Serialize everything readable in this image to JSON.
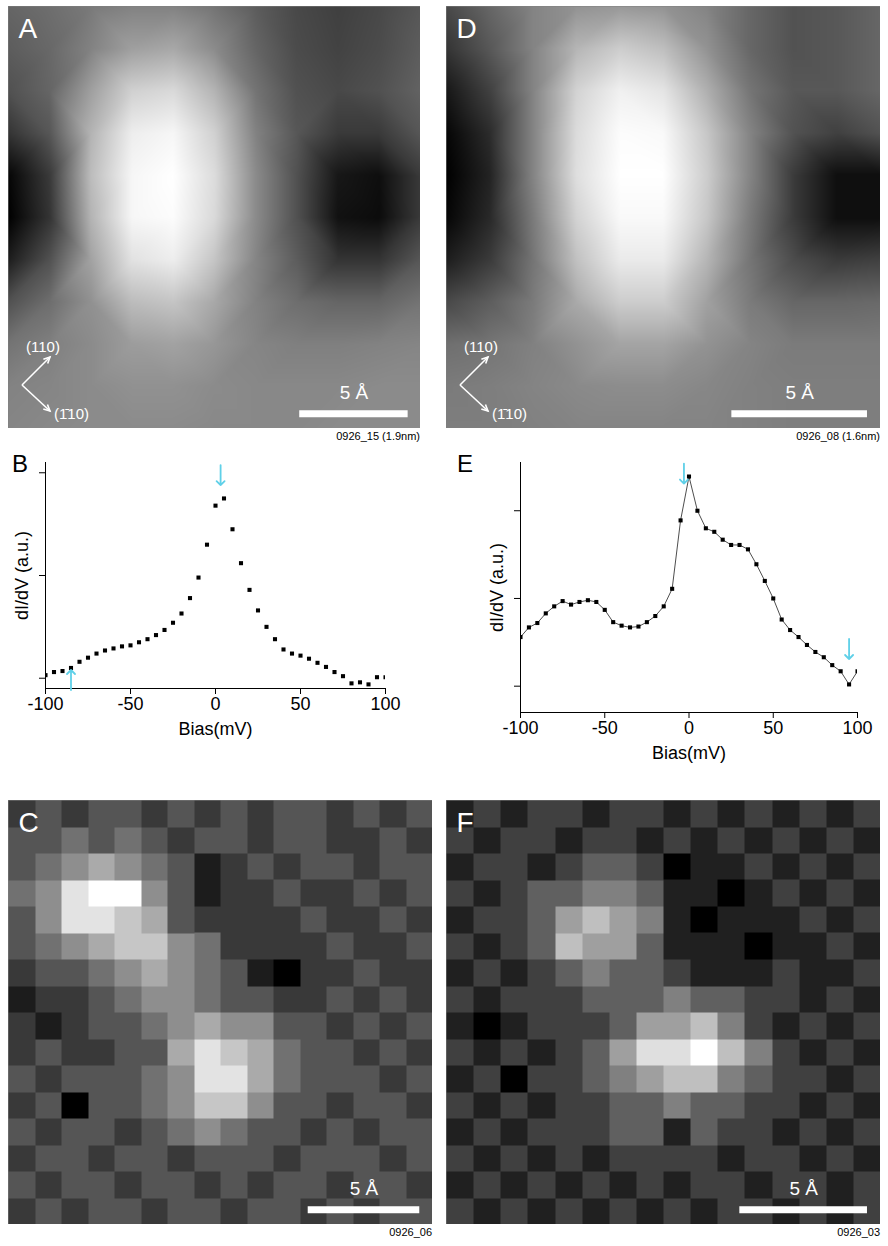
{
  "chart_data": [
    {
      "title": "A",
      "type": "image",
      "caption": "0926_15 (1.9nm)",
      "xlim": [
        0,
        19
      ],
      "ylim": [
        0,
        19
      ],
      "tick_labels": false,
      "scale_bar": {
        "length": 5,
        "label": "5 Å"
      },
      "annotations": [
        "(110)",
        "(1̄10)"
      ],
      "cells": [
        [
          0.45,
          0.48,
          0.52,
          0.55,
          0.55,
          0.5,
          0.42,
          0.35,
          0.32,
          0.35,
          0.4
        ],
        [
          0.42,
          0.46,
          0.55,
          0.65,
          0.68,
          0.58,
          0.45,
          0.36,
          0.33,
          0.36,
          0.42
        ],
        [
          0.38,
          0.45,
          0.65,
          0.82,
          0.85,
          0.72,
          0.5,
          0.38,
          0.35,
          0.38,
          0.44
        ],
        [
          0.28,
          0.4,
          0.72,
          0.92,
          0.95,
          0.82,
          0.55,
          0.4,
          0.3,
          0.3,
          0.4
        ],
        [
          0.12,
          0.3,
          0.75,
          0.95,
          0.98,
          0.86,
          0.58,
          0.38,
          0.18,
          0.15,
          0.3
        ],
        [
          0.1,
          0.28,
          0.72,
          0.95,
          0.97,
          0.85,
          0.58,
          0.38,
          0.16,
          0.14,
          0.3
        ],
        [
          0.2,
          0.38,
          0.66,
          0.88,
          0.92,
          0.78,
          0.56,
          0.42,
          0.28,
          0.28,
          0.4
        ],
        [
          0.38,
          0.48,
          0.6,
          0.75,
          0.78,
          0.68,
          0.55,
          0.48,
          0.45,
          0.45,
          0.5
        ],
        [
          0.5,
          0.54,
          0.58,
          0.64,
          0.66,
          0.62,
          0.56,
          0.54,
          0.54,
          0.55,
          0.56
        ],
        [
          0.55,
          0.56,
          0.58,
          0.6,
          0.6,
          0.58,
          0.57,
          0.57,
          0.57,
          0.58,
          0.58
        ],
        [
          0.56,
          0.57,
          0.58,
          0.58,
          0.58,
          0.57,
          0.57,
          0.57,
          0.58,
          0.58,
          0.58
        ]
      ]
    },
    {
      "title": "D",
      "type": "image",
      "caption": "0926_08 (1.6nm)",
      "xlim": [
        0,
        16
      ],
      "ylim": [
        0,
        16
      ],
      "tick_labels": false,
      "scale_bar": {
        "length": 5,
        "label": "5 Å"
      },
      "annotations": [
        "(110)",
        "(1̄10)"
      ],
      "cells": [
        [
          0.35,
          0.45,
          0.55,
          0.6,
          0.62,
          0.6,
          0.55,
          0.45,
          0.38,
          0.4,
          0.45
        ],
        [
          0.28,
          0.4,
          0.55,
          0.72,
          0.8,
          0.75,
          0.6,
          0.45,
          0.38,
          0.4,
          0.45
        ],
        [
          0.18,
          0.32,
          0.55,
          0.82,
          0.92,
          0.88,
          0.7,
          0.5,
          0.4,
          0.4,
          0.45
        ],
        [
          0.12,
          0.25,
          0.55,
          0.85,
          0.96,
          0.95,
          0.78,
          0.55,
          0.38,
          0.32,
          0.38
        ],
        [
          0.1,
          0.22,
          0.55,
          0.86,
          0.97,
          0.97,
          0.8,
          0.55,
          0.3,
          0.15,
          0.15
        ],
        [
          0.12,
          0.24,
          0.52,
          0.82,
          0.95,
          0.95,
          0.78,
          0.52,
          0.3,
          0.15,
          0.15
        ],
        [
          0.2,
          0.3,
          0.5,
          0.76,
          0.9,
          0.9,
          0.72,
          0.5,
          0.36,
          0.3,
          0.32
        ],
        [
          0.35,
          0.42,
          0.52,
          0.68,
          0.8,
          0.8,
          0.65,
          0.52,
          0.45,
          0.45,
          0.46
        ],
        [
          0.48,
          0.5,
          0.54,
          0.6,
          0.66,
          0.66,
          0.6,
          0.55,
          0.52,
          0.52,
          0.52
        ],
        [
          0.52,
          0.53,
          0.55,
          0.57,
          0.58,
          0.58,
          0.56,
          0.54,
          0.53,
          0.53,
          0.53
        ],
        [
          0.53,
          0.53,
          0.54,
          0.55,
          0.55,
          0.55,
          0.55,
          0.54,
          0.53,
          0.53,
          0.53
        ]
      ]
    },
    {
      "title": "B",
      "type": "scatter",
      "x_label": "Bias(mV)",
      "y_label": "dI/dV (a.u.)",
      "xlim": [
        -100,
        100
      ],
      "ylim": [
        -0.1,
        2.1
      ],
      "xticks": [
        -100,
        -50,
        0,
        50,
        100
      ],
      "yticks": [
        0,
        1,
        2
      ],
      "tick_labels": "x",
      "marker": "square",
      "color": "#000000",
      "x": [
        -100,
        -95,
        -90,
        -85,
        -80,
        -75,
        -70,
        -65,
        -60,
        -55,
        -50,
        -45,
        -40,
        -35,
        -30,
        -25,
        -20,
        -15,
        -10,
        -5,
        0,
        5,
        10,
        15,
        20,
        25,
        30,
        35,
        40,
        45,
        50,
        55,
        60,
        65,
        70,
        75,
        80,
        85,
        90,
        95,
        100
      ],
      "values": [
        0.03,
        0.06,
        0.07,
        0.1,
        0.16,
        0.2,
        0.24,
        0.27,
        0.29,
        0.31,
        0.32,
        0.35,
        0.38,
        0.42,
        0.47,
        0.54,
        0.63,
        0.78,
        0.98,
        1.3,
        1.68,
        1.75,
        1.45,
        1.12,
        0.86,
        0.66,
        0.5,
        0.38,
        0.28,
        0.24,
        0.22,
        0.19,
        0.15,
        0.11,
        0.06,
        0.02,
        -0.05,
        -0.04,
        -0.06,
        0.01,
        0.01
      ],
      "arrows": [
        {
          "x": 3,
          "y": 1.88,
          "direction": "down"
        },
        {
          "x": -85,
          "y": 0.08,
          "direction": "up"
        }
      ]
    },
    {
      "title": "E",
      "type": "scatter",
      "x_label": "Bias(mV)",
      "y_label": "dI/dV (a.u.)",
      "xlim": [
        -100,
        100
      ],
      "ylim": [
        -0.3,
        2.55
      ],
      "xticks": [
        -100,
        -50,
        0,
        50,
        100
      ],
      "yticks": [
        0,
        1,
        2
      ],
      "tick_labels": "x",
      "marker": "square",
      "line_style": "solid",
      "color": "#000000",
      "x": [
        -100,
        -95,
        -90,
        -85,
        -80,
        -75,
        -70,
        -65,
        -60,
        -55,
        -50,
        -45,
        -40,
        -35,
        -30,
        -25,
        -20,
        -15,
        -10,
        -5,
        0,
        5,
        10,
        15,
        20,
        25,
        30,
        35,
        40,
        45,
        50,
        55,
        60,
        65,
        70,
        75,
        80,
        85,
        90,
        95,
        100
      ],
      "values": [
        0.56,
        0.67,
        0.72,
        0.83,
        0.91,
        0.97,
        0.93,
        0.96,
        0.98,
        0.96,
        0.87,
        0.73,
        0.69,
        0.67,
        0.68,
        0.73,
        0.8,
        0.91,
        1.11,
        1.89,
        2.39,
        2.0,
        1.8,
        1.76,
        1.67,
        1.61,
        1.61,
        1.56,
        1.39,
        1.2,
        1.0,
        0.76,
        0.64,
        0.56,
        0.47,
        0.39,
        0.33,
        0.24,
        0.17,
        0.02,
        0.17
      ],
      "arrows": [
        {
          "x": -3,
          "y": 2.31,
          "direction": "down"
        },
        {
          "x": 95,
          "y": 0.31,
          "direction": "down"
        }
      ]
    },
    {
      "title": "C",
      "type": "heatmap",
      "caption": "0926_06",
      "xlim": [
        0,
        19
      ],
      "ylim": [
        0,
        19
      ],
      "tick_labels": false,
      "scale_bar": {
        "length": 5,
        "label": "5 Å"
      },
      "cells": [
        [
          2,
          3,
          2,
          3,
          3,
          2,
          3,
          2,
          3,
          2,
          3,
          3,
          2,
          3,
          2,
          3
        ],
        [
          3,
          3,
          4,
          3,
          4,
          3,
          2,
          3,
          3,
          2,
          3,
          3,
          2,
          2,
          3,
          2
        ],
        [
          3,
          4,
          5,
          6,
          5,
          4,
          3,
          1,
          2,
          3,
          2,
          3,
          3,
          2,
          3,
          3
        ],
        [
          4,
          5,
          8,
          9,
          9,
          5,
          3,
          1,
          2,
          2,
          3,
          2,
          2,
          3,
          2,
          3
        ],
        [
          3,
          5,
          8,
          8,
          7,
          6,
          3,
          2,
          2,
          2,
          2,
          3,
          2,
          2,
          3,
          2
        ],
        [
          3,
          4,
          5,
          6,
          7,
          7,
          5,
          4,
          2,
          2,
          2,
          2,
          3,
          2,
          2,
          3
        ],
        [
          2,
          3,
          3,
          4,
          5,
          6,
          5,
          4,
          3,
          1,
          0,
          2,
          2,
          3,
          2,
          2
        ],
        [
          1,
          2,
          2,
          3,
          4,
          5,
          5,
          4,
          3,
          3,
          2,
          2,
          3,
          2,
          3,
          2
        ],
        [
          2,
          1,
          2,
          3,
          3,
          4,
          5,
          6,
          5,
          5,
          3,
          3,
          2,
          3,
          2,
          3
        ],
        [
          2,
          3,
          2,
          2,
          3,
          3,
          6,
          8,
          7,
          6,
          4,
          3,
          3,
          2,
          3,
          2
        ],
        [
          3,
          2,
          3,
          3,
          3,
          4,
          5,
          8,
          8,
          6,
          4,
          3,
          3,
          3,
          2,
          3
        ],
        [
          2,
          3,
          0,
          3,
          3,
          4,
          5,
          7,
          7,
          5,
          3,
          3,
          2,
          3,
          3,
          2
        ],
        [
          3,
          2,
          3,
          3,
          2,
          3,
          4,
          5,
          4,
          3,
          3,
          2,
          3,
          2,
          3,
          3
        ],
        [
          2,
          3,
          3,
          2,
          3,
          3,
          2,
          3,
          3,
          3,
          2,
          3,
          3,
          3,
          2,
          3
        ],
        [
          3,
          2,
          3,
          3,
          2,
          3,
          3,
          2,
          3,
          2,
          3,
          3,
          2,
          3,
          3,
          2
        ],
        [
          2,
          3,
          2,
          3,
          3,
          2,
          3,
          3,
          2,
          3,
          3,
          2,
          3,
          2,
          3,
          3
        ]
      ]
    },
    {
      "title": "F",
      "type": "heatmap",
      "caption": "0926_03",
      "xlim": [
        0,
        17
      ],
      "ylim": [
        0,
        17
      ],
      "tick_labels": false,
      "scale_bar": {
        "length": 5,
        "label": "5 Å"
      },
      "cells": [
        [
          2,
          3,
          2,
          3,
          3,
          2,
          3,
          3,
          2,
          3,
          2,
          3,
          2,
          3,
          2,
          3
        ],
        [
          3,
          2,
          3,
          3,
          2,
          3,
          3,
          2,
          3,
          2,
          3,
          2,
          3,
          2,
          3,
          2
        ],
        [
          2,
          3,
          3,
          2,
          3,
          4,
          4,
          3,
          1,
          2,
          2,
          3,
          2,
          3,
          2,
          3
        ],
        [
          3,
          2,
          3,
          4,
          4,
          5,
          5,
          4,
          2,
          2,
          1,
          2,
          3,
          2,
          3,
          2
        ],
        [
          2,
          3,
          3,
          4,
          6,
          7,
          6,
          5,
          2,
          1,
          2,
          2,
          2,
          3,
          2,
          3
        ],
        [
          3,
          2,
          3,
          4,
          7,
          6,
          6,
          4,
          2,
          2,
          2,
          1,
          2,
          2,
          3,
          2
        ],
        [
          2,
          3,
          2,
          3,
          4,
          5,
          4,
          4,
          3,
          2,
          2,
          2,
          3,
          2,
          2,
          3
        ],
        [
          3,
          2,
          3,
          3,
          3,
          4,
          4,
          4,
          5,
          4,
          4,
          3,
          3,
          2,
          3,
          2
        ],
        [
          2,
          1,
          2,
          3,
          3,
          3,
          4,
          6,
          6,
          7,
          5,
          3,
          2,
          3,
          2,
          3
        ],
        [
          3,
          2,
          3,
          2,
          3,
          4,
          6,
          8,
          8,
          9,
          7,
          5,
          3,
          2,
          3,
          2
        ],
        [
          2,
          3,
          1,
          3,
          3,
          4,
          5,
          6,
          7,
          7,
          5,
          4,
          3,
          3,
          2,
          3
        ],
        [
          3,
          2,
          3,
          2,
          3,
          3,
          4,
          4,
          5,
          4,
          4,
          3,
          3,
          2,
          3,
          2
        ],
        [
          2,
          3,
          2,
          3,
          3,
          3,
          4,
          4,
          2,
          4,
          3,
          3,
          2,
          3,
          2,
          3
        ],
        [
          3,
          2,
          3,
          2,
          3,
          2,
          3,
          3,
          3,
          3,
          2,
          3,
          3,
          2,
          3,
          2
        ],
        [
          2,
          3,
          2,
          3,
          2,
          3,
          2,
          3,
          2,
          3,
          3,
          2,
          3,
          3,
          2,
          3
        ],
        [
          3,
          2,
          3,
          2,
          3,
          2,
          3,
          2,
          3,
          2,
          3,
          3,
          2,
          3,
          2,
          3
        ]
      ]
    }
  ]
}
